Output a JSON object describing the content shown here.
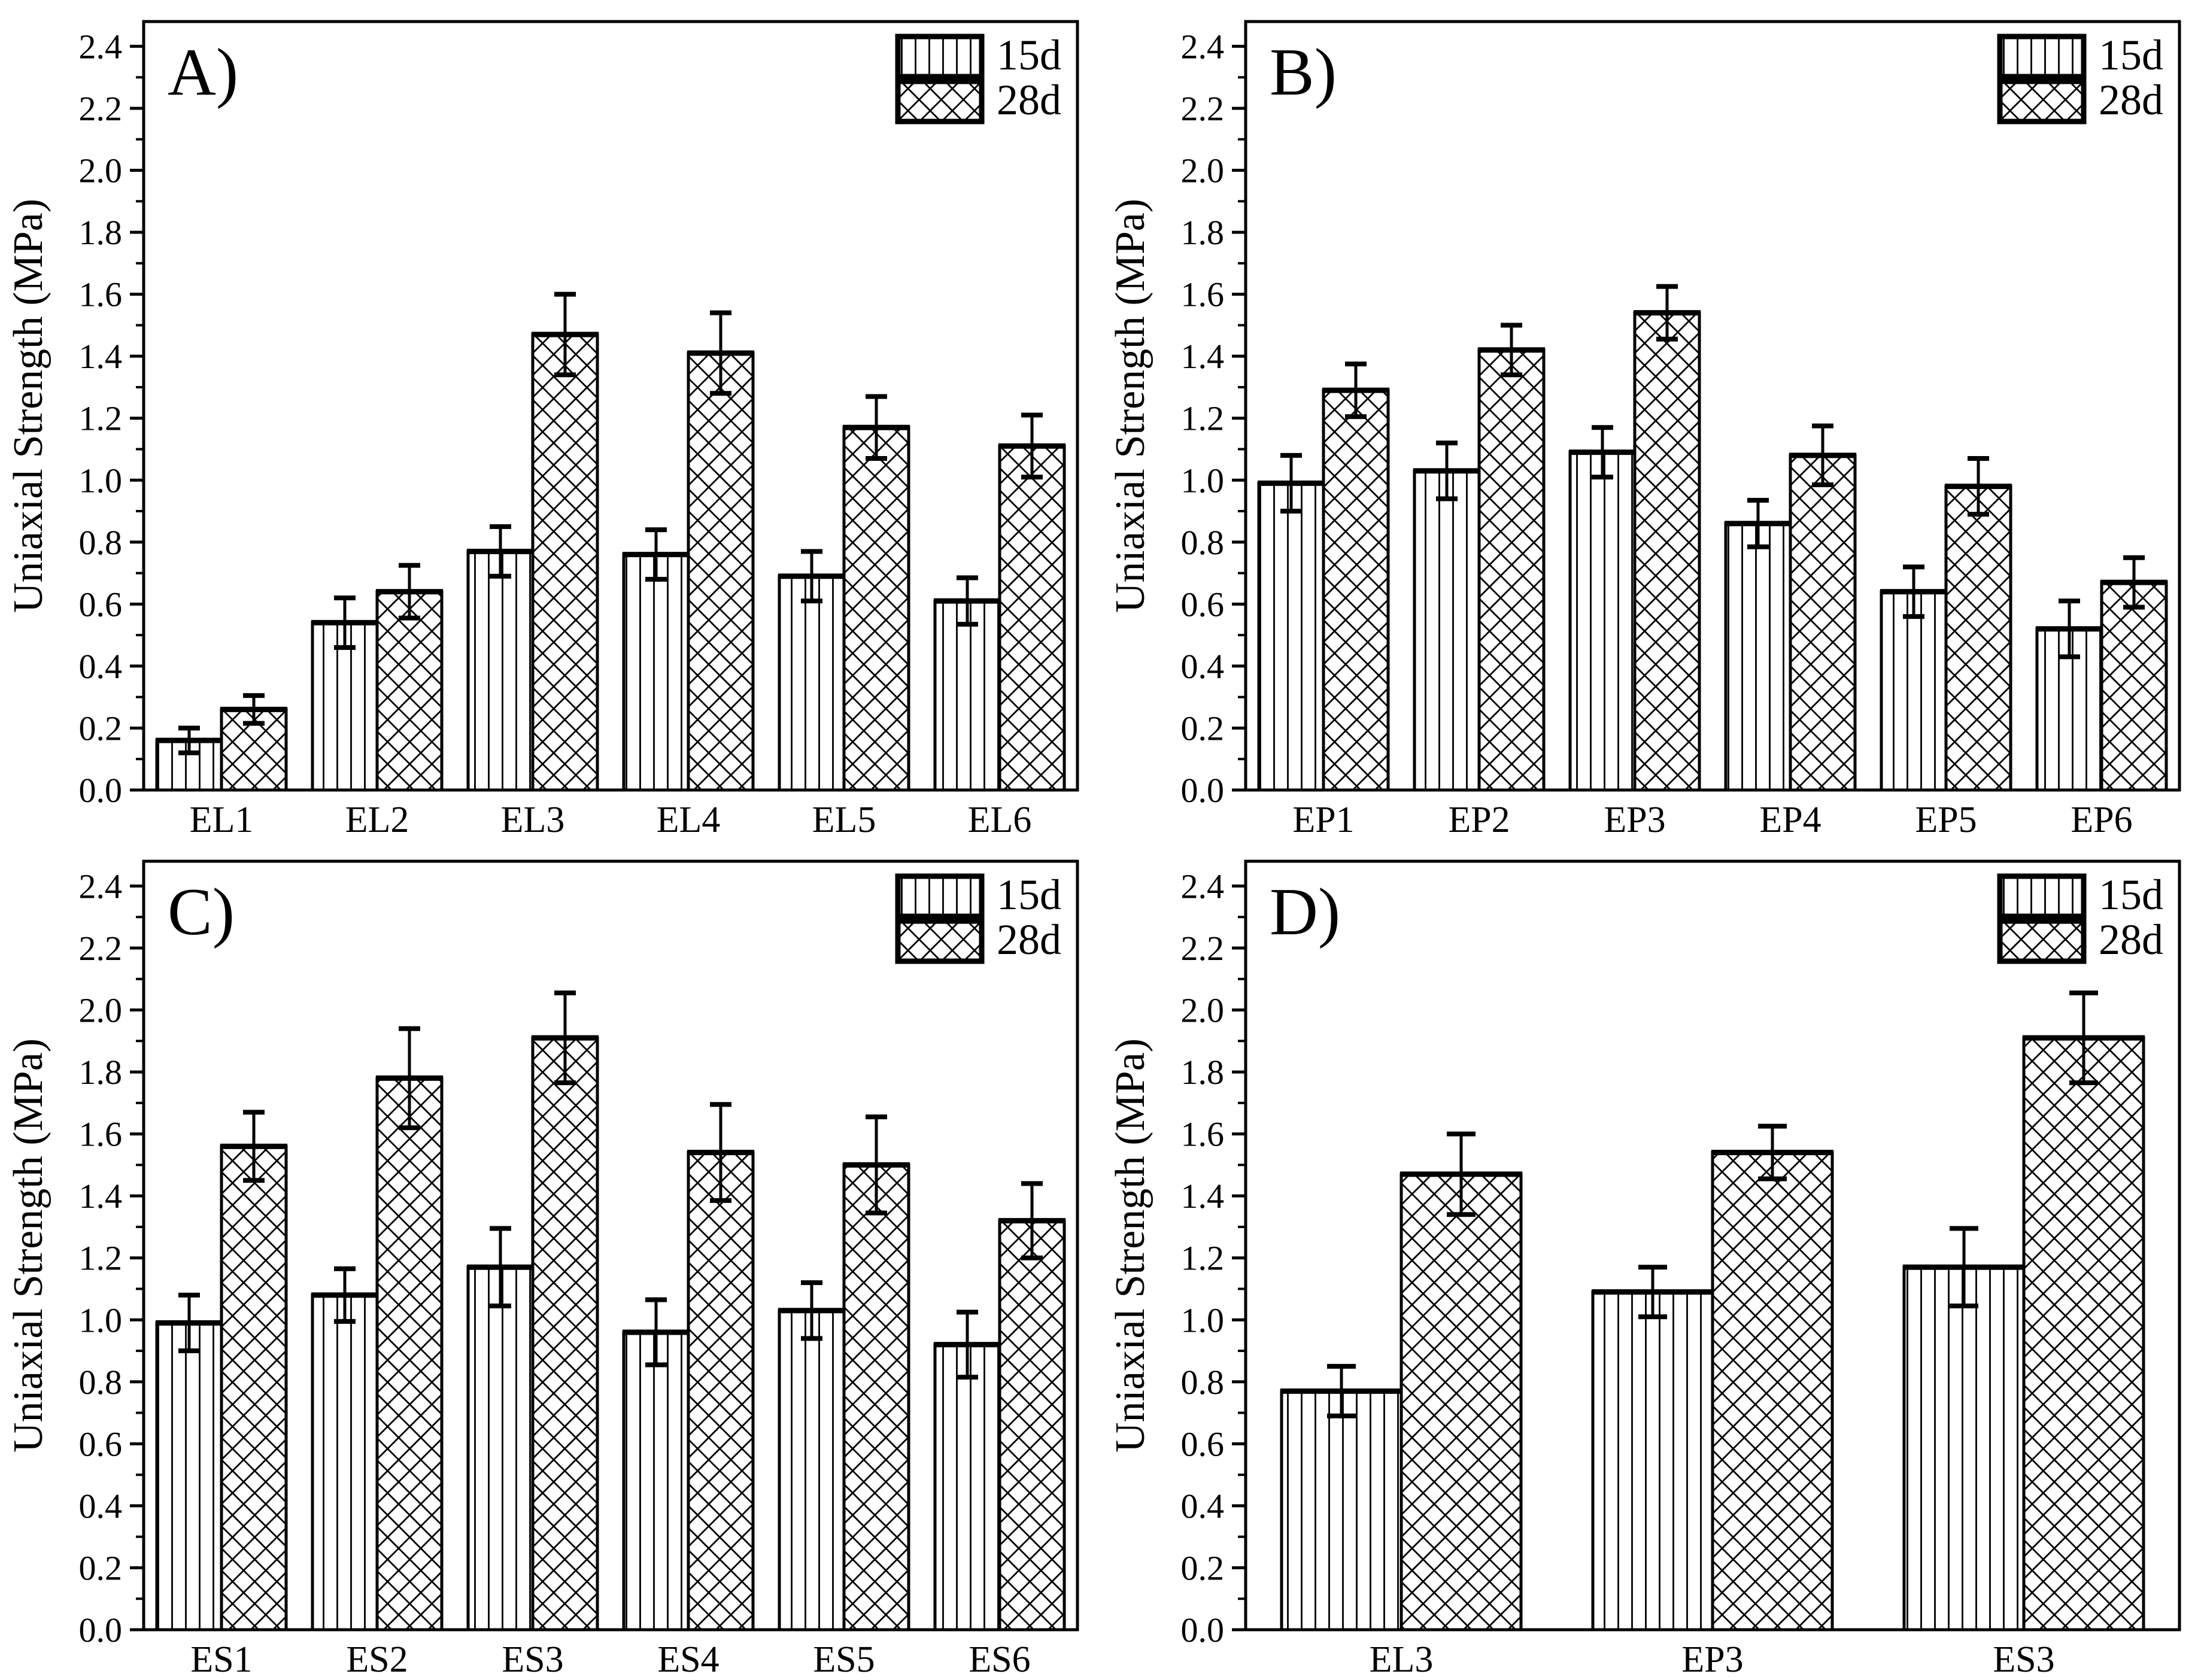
{
  "figure": {
    "background": "#ffffff",
    "ink_color": "#000000",
    "panel_labels": [
      "A)",
      "B)",
      "C)",
      "D)"
    ]
  },
  "legend": {
    "entries": [
      {
        "label": "15d",
        "hatch": "vertical-lines"
      },
      {
        "label": "28d",
        "hatch": "crosshatch"
      }
    ],
    "position": "top-right"
  },
  "chart_data": [
    {
      "type": "bar",
      "panel_label": "A)",
      "title": "",
      "xlabel": "",
      "ylabel": "Uniaxial Strength (MPa)",
      "ylim": [
        0,
        2.48
      ],
      "yticks": [
        "0.0",
        "0.2",
        "0.4",
        "0.6",
        "0.8",
        "1.0",
        "1.2",
        "1.4",
        "1.6",
        "1.8",
        "2.0",
        "2.2",
        "2.4"
      ],
      "minor_tick_step": 0.1,
      "grid": false,
      "legend_position": "top-right",
      "categories": [
        "EL1",
        "EL2",
        "EL3",
        "EL4",
        "EL5",
        "EL6"
      ],
      "series": [
        {
          "name": "15d",
          "hatch": "vertical-lines",
          "values": [
            0.16,
            0.54,
            0.77,
            0.76,
            0.69,
            0.61
          ],
          "errors": [
            0.04,
            0.08,
            0.08,
            0.08,
            0.08,
            0.075
          ]
        },
        {
          "name": "28d",
          "hatch": "crosshatch",
          "values": [
            0.26,
            0.64,
            1.47,
            1.41,
            1.17,
            1.11
          ],
          "errors": [
            0.045,
            0.085,
            0.13,
            0.13,
            0.1,
            0.1
          ]
        }
      ]
    },
    {
      "type": "bar",
      "panel_label": "B)",
      "title": "",
      "xlabel": "",
      "ylabel": "Uniaxial Strength (MPa)",
      "ylim": [
        0,
        2.48
      ],
      "yticks": [
        "0.0",
        "0.2",
        "0.4",
        "0.6",
        "0.8",
        "1.0",
        "1.2",
        "1.4",
        "1.6",
        "1.8",
        "2.0",
        "2.2",
        "2.4"
      ],
      "minor_tick_step": 0.1,
      "grid": false,
      "legend_position": "top-right",
      "categories": [
        "EP1",
        "EP2",
        "EP3",
        "EP4",
        "EP5",
        "EP6"
      ],
      "series": [
        {
          "name": "15d",
          "hatch": "vertical-lines",
          "values": [
            0.99,
            1.03,
            1.09,
            0.86,
            0.64,
            0.52
          ],
          "errors": [
            0.09,
            0.09,
            0.08,
            0.075,
            0.08,
            0.09
          ]
        },
        {
          "name": "28d",
          "hatch": "crosshatch",
          "values": [
            1.29,
            1.42,
            1.54,
            1.08,
            0.98,
            0.67
          ],
          "errors": [
            0.085,
            0.08,
            0.085,
            0.095,
            0.09,
            0.08
          ]
        }
      ]
    },
    {
      "type": "bar",
      "panel_label": "C)",
      "title": "",
      "xlabel": "",
      "ylabel": "Uniaxial Strength (MPa)",
      "ylim": [
        0,
        2.48
      ],
      "yticks": [
        "0.0",
        "0.2",
        "0.4",
        "0.6",
        "0.8",
        "1.0",
        "1.2",
        "1.4",
        "1.6",
        "1.8",
        "2.0",
        "2.2",
        "2.4"
      ],
      "minor_tick_step": 0.1,
      "grid": false,
      "legend_position": "top-right",
      "categories": [
        "ES1",
        "ES2",
        "ES3",
        "ES4",
        "ES5",
        "ES6"
      ],
      "series": [
        {
          "name": "15d",
          "hatch": "vertical-lines",
          "values": [
            0.99,
            1.08,
            1.17,
            0.96,
            1.03,
            0.92
          ],
          "errors": [
            0.09,
            0.085,
            0.125,
            0.105,
            0.09,
            0.105
          ]
        },
        {
          "name": "28d",
          "hatch": "crosshatch",
          "values": [
            1.56,
            1.78,
            1.91,
            1.54,
            1.5,
            1.32
          ],
          "errors": [
            0.11,
            0.16,
            0.145,
            0.155,
            0.155,
            0.12
          ]
        }
      ]
    },
    {
      "type": "bar",
      "panel_label": "D)",
      "title": "",
      "xlabel": "",
      "ylabel": "Uniaxial Strength (MPa)",
      "ylim": [
        0,
        2.48
      ],
      "yticks": [
        "0.0",
        "0.2",
        "0.4",
        "0.6",
        "0.8",
        "1.0",
        "1.2",
        "1.4",
        "1.6",
        "1.8",
        "2.0",
        "2.2",
        "2.4"
      ],
      "minor_tick_step": 0.1,
      "grid": false,
      "legend_position": "top-right",
      "categories": [
        "EL3",
        "EP3",
        "ES3"
      ],
      "series": [
        {
          "name": "15d",
          "hatch": "vertical-lines",
          "values": [
            0.77,
            1.09,
            1.17
          ],
          "errors": [
            0.08,
            0.08,
            0.125
          ]
        },
        {
          "name": "28d",
          "hatch": "crosshatch",
          "values": [
            1.47,
            1.54,
            1.91
          ],
          "errors": [
            0.13,
            0.085,
            0.145
          ]
        }
      ]
    }
  ]
}
